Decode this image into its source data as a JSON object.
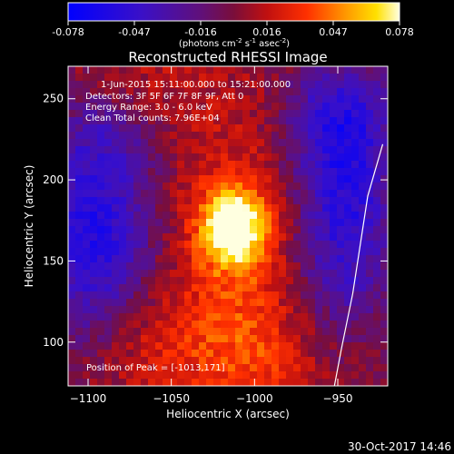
{
  "colorbar": {
    "ticks": [
      "-0.078",
      "-0.047",
      "-0.016",
      "0.016",
      "0.047",
      "0.078"
    ],
    "units_main": "(photons cm",
    "units_sup1": "-2",
    "units_mid": " s",
    "units_sup2": "-1",
    "units_end": " asec",
    "units_sup3": "-2",
    "units_close": ")"
  },
  "title": "Reconstructed RHESSI Image",
  "info": {
    "line1": "1-Jun-2015 15:11:00.000 to 15:21:00.000",
    "line2": "Detectors: 3F 5F 6F 7F 8F 9F, Att 0",
    "line3": "Energy Range: 3.0 - 6.0 keV",
    "line4": "Clean     Total counts: 7.96E+04"
  },
  "peak_label": "Position of Peak = [-1013,171]",
  "footer_date": "30-Oct-2017 14:46",
  "chart_data": {
    "type": "heatmap",
    "title": "Reconstructed RHESSI Image",
    "xlabel": "Heliocentric X (arcsec)",
    "ylabel": "Heliocentric Y (arcsec)",
    "xlim": [
      -1112,
      -920
    ],
    "ylim": [
      73,
      270
    ],
    "xticks": [
      -1100,
      -1050,
      -1000,
      -950
    ],
    "yticks": [
      100,
      150,
      200,
      250
    ],
    "xtick_labels": [
      "−1100",
      "−1050",
      "−1000",
      "−950"
    ],
    "ytick_labels": [
      "100",
      "150",
      "200",
      "250"
    ],
    "peak": [
      -1013,
      171
    ],
    "value_range": [
      -0.078,
      0.078
    ],
    "colormap": "rhessi-blue-purple-red-yellow-white",
    "limb_line": [
      [
        -923,
        222
      ],
      [
        -932,
        190
      ],
      [
        -941,
        130
      ],
      [
        -948,
        95
      ],
      [
        -952,
        73
      ]
    ]
  }
}
